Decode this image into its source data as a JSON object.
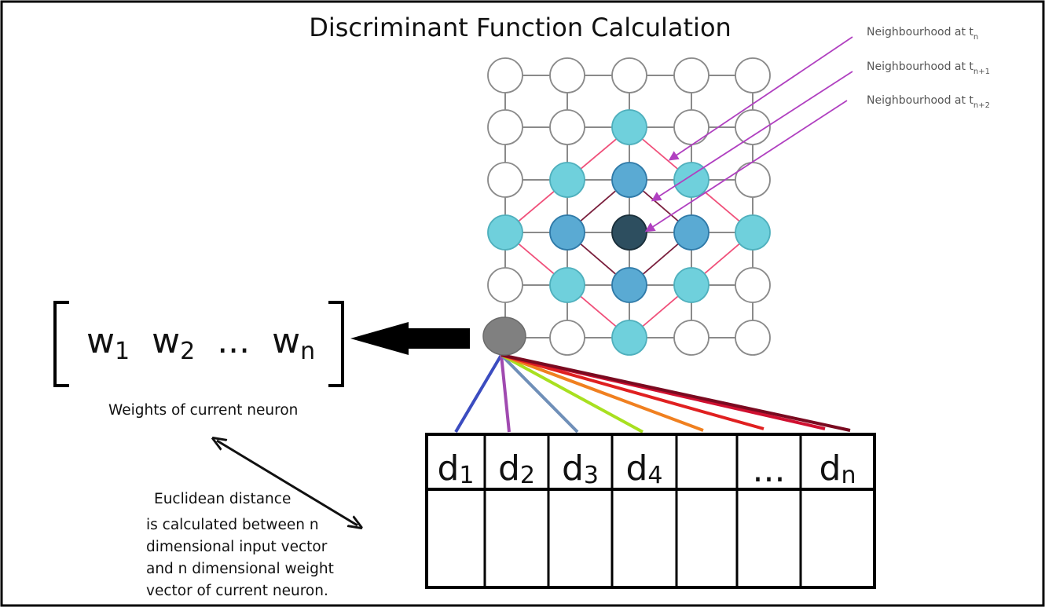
{
  "title": "Discriminant Function Calculation",
  "neighbourhood_labels": [
    {
      "text": "Neighbourhood at t",
      "sub": "n"
    },
    {
      "text": "Neighbourhood at t",
      "sub": "n+1"
    },
    {
      "text": "Neighbourhood at t",
      "sub": "n+2"
    }
  ],
  "weights": {
    "terms": [
      {
        "base": "w",
        "sub": "1"
      },
      {
        "base": "w",
        "sub": "2"
      },
      {
        "base": "...",
        "sub": ""
      },
      {
        "base": "w",
        "sub": "n"
      }
    ],
    "caption": "Weights of current neuron"
  },
  "distance_text": [
    "Euclidean distance",
    "is calculated between n",
    "dimensional input vector",
    "and n dimensional weight",
    "vector of current neuron."
  ],
  "input_cells": [
    {
      "base": "d",
      "sub": "1"
    },
    {
      "base": "d",
      "sub": "2"
    },
    {
      "base": "d",
      "sub": "3"
    },
    {
      "base": "d",
      "sub": "4"
    },
    {
      "base": "",
      "sub": ""
    },
    {
      "base": "...",
      "sub": ""
    },
    {
      "base": "d",
      "sub": "n"
    }
  ],
  "colors": {
    "node_empty": "#ffffff",
    "node_outer": "#6fd0dc",
    "node_mid": "#5aaad3",
    "node_bmu": "#2d4e5f",
    "node_current": "#808080",
    "grid_line": "#8a8a8a",
    "outer_diamond": "#f0507a",
    "inner_diamond": "#7a1f3d",
    "arrow_purple": "#b040c0",
    "connections": [
      "#3b4cc0",
      "#a04ab0",
      "#6f8fb8",
      "#a8e020",
      "#f08020",
      "#e02020",
      "#d01030",
      "#7a0a20"
    ]
  }
}
